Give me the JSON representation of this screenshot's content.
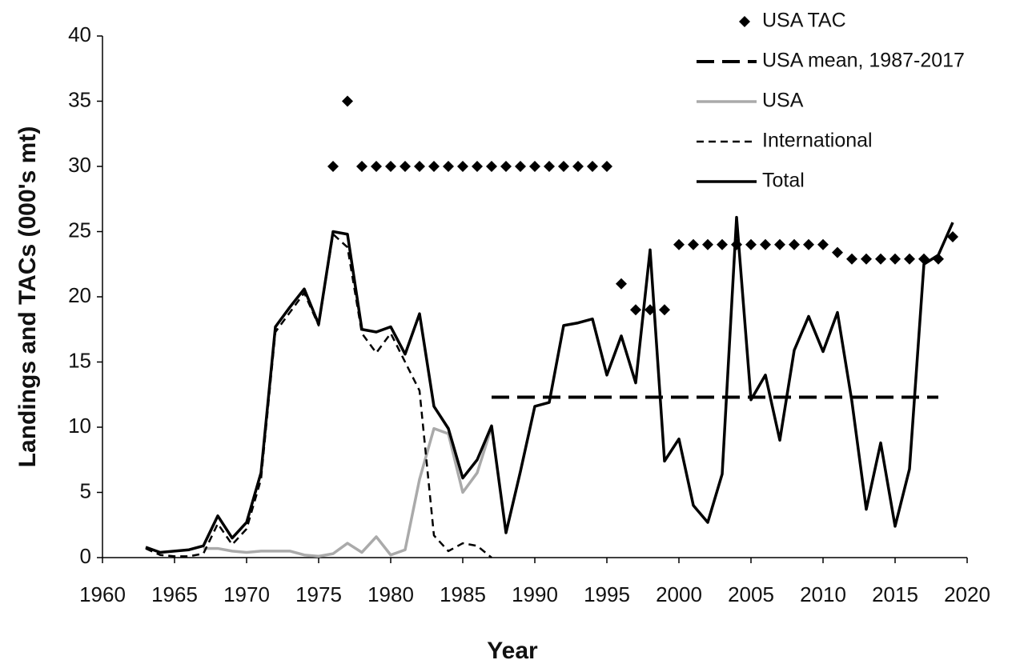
{
  "chart_data": {
    "type": "line",
    "xlabel": "Year",
    "ylabel": "Landings and TACs (000's mt)",
    "xlim": [
      1960,
      2020
    ],
    "xticks": [
      1960,
      1965,
      1970,
      1975,
      1980,
      1985,
      1990,
      1995,
      2000,
      2005,
      2010,
      2015,
      2020
    ],
    "ylim": [
      0,
      40
    ],
    "yticks": [
      0,
      5,
      10,
      15,
      20,
      25,
      30,
      35,
      40
    ],
    "legend": "top-right",
    "x": [
      1963,
      1964,
      1965,
      1966,
      1967,
      1968,
      1969,
      1970,
      1971,
      1972,
      1973,
      1974,
      1975,
      1976,
      1977,
      1978,
      1979,
      1980,
      1981,
      1982,
      1983,
      1984,
      1985,
      1986,
      1987,
      1988,
      1989,
      1990,
      1991,
      1992,
      1993,
      1994,
      1995,
      1996,
      1997,
      1998,
      1999,
      2000,
      2001,
      2002,
      2003,
      2004,
      2005,
      2006,
      2007,
      2008,
      2009,
      2010,
      2011,
      2012,
      2013,
      2014,
      2015,
      2016,
      2017,
      2018,
      2019
    ],
    "series": [
      {
        "name": "USA TAC",
        "color": "#000000",
        "style": "markers",
        "values": [
          null,
          null,
          null,
          null,
          null,
          null,
          null,
          null,
          null,
          null,
          null,
          null,
          null,
          30,
          35,
          30,
          30,
          30,
          30,
          30,
          30,
          30,
          30,
          30,
          30,
          30,
          30,
          30,
          30,
          30,
          30,
          30,
          30,
          21,
          19,
          19,
          19,
          24,
          24,
          24,
          24,
          24,
          24,
          24,
          24,
          24,
          24,
          24,
          23.4,
          22.9,
          22.9,
          22.9,
          22.9,
          22.9,
          22.9,
          22.9,
          24.6
        ]
      },
      {
        "name": "USA mean, 1987-2017",
        "color": "#000000",
        "style": "long-dash",
        "values": [
          null,
          null,
          null,
          null,
          null,
          null,
          null,
          null,
          null,
          null,
          null,
          null,
          null,
          null,
          null,
          null,
          null,
          null,
          null,
          null,
          null,
          null,
          null,
          null,
          12.3,
          12.3,
          12.3,
          12.3,
          12.3,
          12.3,
          12.3,
          12.3,
          12.3,
          12.3,
          12.3,
          12.3,
          12.3,
          12.3,
          12.3,
          12.3,
          12.3,
          12.3,
          12.3,
          12.3,
          12.3,
          12.3,
          12.3,
          12.3,
          12.3,
          12.3,
          12.3,
          12.3,
          12.3,
          12.3,
          12.3,
          12.3,
          null
        ]
      },
      {
        "name": "USA",
        "color": "#aaaaaa",
        "style": "solid",
        "values": [
          null,
          null,
          null,
          null,
          0.7,
          0.7,
          0.5,
          0.4,
          0.5,
          0.5,
          0.5,
          0.2,
          0.1,
          0.3,
          1.1,
          0.4,
          1.6,
          0.2,
          0.6,
          6.0,
          9.9,
          9.5,
          5.0,
          6.5,
          10.0,
          null,
          null,
          null,
          null,
          null,
          null,
          null,
          null,
          null,
          null,
          null,
          null,
          null,
          null,
          null,
          null,
          null,
          null,
          null,
          null,
          null,
          null,
          null,
          null,
          null,
          null,
          null,
          null,
          null,
          null,
          null,
          null
        ]
      },
      {
        "name": "International",
        "color": "#000000",
        "style": "short-dash",
        "values": [
          0.7,
          0.2,
          0.1,
          0.1,
          0.3,
          2.6,
          1.0,
          2.2,
          6.0,
          17.3,
          18.8,
          20.3,
          17.8,
          24.8,
          23.8,
          17.2,
          15.7,
          17.2,
          15.0,
          12.8,
          1.7,
          0.5,
          1.1,
          0.9,
          0.0,
          null,
          null,
          null,
          null,
          null,
          null,
          null,
          null,
          null,
          null,
          null,
          null,
          null,
          null,
          null,
          null,
          null,
          null,
          null,
          null,
          null,
          null,
          null,
          null,
          null,
          null,
          null,
          null,
          null,
          null,
          null,
          null
        ]
      },
      {
        "name": "Total",
        "color": "#000000",
        "style": "solid",
        "values": [
          0.8,
          0.4,
          0.5,
          0.6,
          0.9,
          3.2,
          1.5,
          2.7,
          6.5,
          17.7,
          19.2,
          20.6,
          17.9,
          25.0,
          24.8,
          17.5,
          17.3,
          17.7,
          15.6,
          18.7,
          11.6,
          9.9,
          6.1,
          7.5,
          10.1,
          1.9,
          6.6,
          11.6,
          11.9,
          17.8,
          18.0,
          18.3,
          14.0,
          17.0,
          13.4,
          23.6,
          7.4,
          9.1,
          4.0,
          2.7,
          6.4,
          26.1,
          12.1,
          14.0,
          9.0,
          15.9,
          18.5,
          15.8,
          18.8,
          12.0,
          3.7,
          8.8,
          2.4,
          6.8,
          22.5,
          23.2,
          25.7
        ]
      }
    ]
  }
}
